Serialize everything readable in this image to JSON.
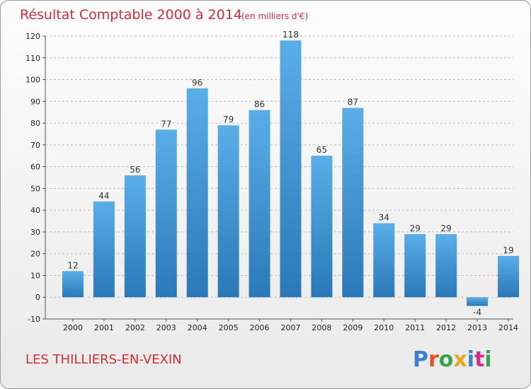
{
  "colors": {
    "bar": "#3f8fd1",
    "accent": "#d02e3c"
  },
  "place_name": "LES THILLIERS-EN-VEXIN",
  "logo_text": "Proxiti",
  "chart_data": {
    "type": "bar",
    "title": "Résultat Comptable 2000 à 2014",
    "subtitle": "(en milliers d'€)",
    "xlabel": "",
    "ylabel": "",
    "ylim": [
      -10,
      120
    ],
    "yticks": [
      -10,
      0,
      10,
      20,
      30,
      40,
      50,
      60,
      70,
      80,
      90,
      100,
      110,
      120
    ],
    "grid": "horizontal dashed",
    "categories": [
      "2000",
      "2001",
      "2002",
      "2003",
      "2004",
      "2005",
      "2006",
      "2007",
      "2008",
      "2009",
      "2010",
      "2011",
      "2012",
      "2013",
      "2014"
    ],
    "values": [
      12,
      44,
      56,
      77,
      96,
      79,
      86,
      118,
      65,
      87,
      34,
      29,
      29,
      -4,
      19
    ]
  }
}
